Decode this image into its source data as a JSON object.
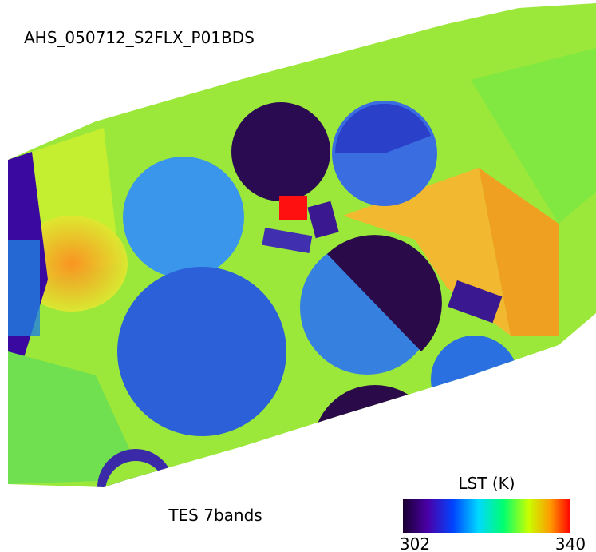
{
  "header": {
    "title": "AHS_050712_S2FLX_P01BDS"
  },
  "footer": {
    "label": "TES 7bands"
  },
  "colorbar": {
    "title": "LST (K)",
    "min": "302",
    "max": "340"
  }
}
